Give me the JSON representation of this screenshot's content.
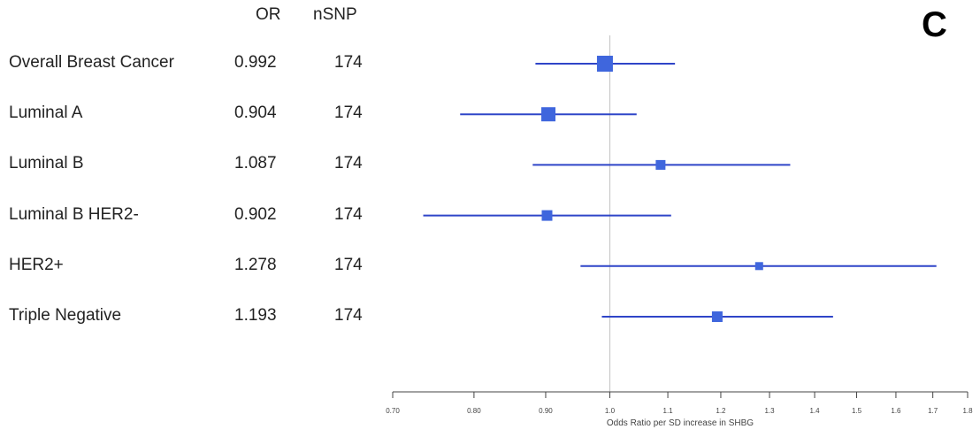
{
  "panel_letter": "C",
  "headers": {
    "or": "OR",
    "nsnp": "nSNP"
  },
  "colors": {
    "marker": "#3f66dd",
    "ci_line": "#2f45c8",
    "reference_line": "#c8c8c8",
    "axis": "#444444"
  },
  "chart_data": {
    "type": "forest",
    "xlabel": "Odds Ratio per SD increase in SHBG",
    "reference_value": 1.0,
    "xlim": [
      0.7,
      1.8
    ],
    "x_scale": "log",
    "ticks": [
      {
        "value": 0.7,
        "label": "0.70"
      },
      {
        "value": 0.8,
        "label": "0.80"
      },
      {
        "value": 0.9,
        "label": "0.90"
      },
      {
        "value": 1.0,
        "label": "1.0"
      },
      {
        "value": 1.1,
        "label": "1.1"
      },
      {
        "value": 1.2,
        "label": "1.2"
      },
      {
        "value": 1.3,
        "label": "1.3"
      },
      {
        "value": 1.4,
        "label": "1.4"
      },
      {
        "value": 1.5,
        "label": "1.5"
      },
      {
        "value": 1.6,
        "label": "1.6"
      },
      {
        "value": 1.7,
        "label": "1.7"
      },
      {
        "value": 1.8,
        "label": "1.8"
      }
    ],
    "rows": [
      {
        "label": "Overall Breast Cancer",
        "or": 0.992,
        "or_text": "0.992",
        "nsnp": "174",
        "ci": [
          0.885,
          1.113
        ]
      },
      {
        "label": "Luminal A",
        "or": 0.904,
        "or_text": "0.904",
        "nsnp": "174",
        "ci": [
          0.782,
          1.045
        ]
      },
      {
        "label": "Luminal B",
        "or": 1.087,
        "or_text": "1.087",
        "nsnp": "174",
        "ci": [
          0.881,
          1.345
        ]
      },
      {
        "label": "Luminal B HER2-",
        "or": 0.902,
        "or_text": "0.902",
        "nsnp": "174",
        "ci": [
          0.736,
          1.106
        ]
      },
      {
        "label": "HER2+",
        "or": 1.278,
        "or_text": "1.278",
        "nsnp": "174",
        "ci": [
          0.953,
          1.71
        ]
      },
      {
        "label": "Triple Negative",
        "or": 1.193,
        "or_text": "1.193",
        "nsnp": "174",
        "ci": [
          0.987,
          1.443
        ]
      }
    ]
  }
}
